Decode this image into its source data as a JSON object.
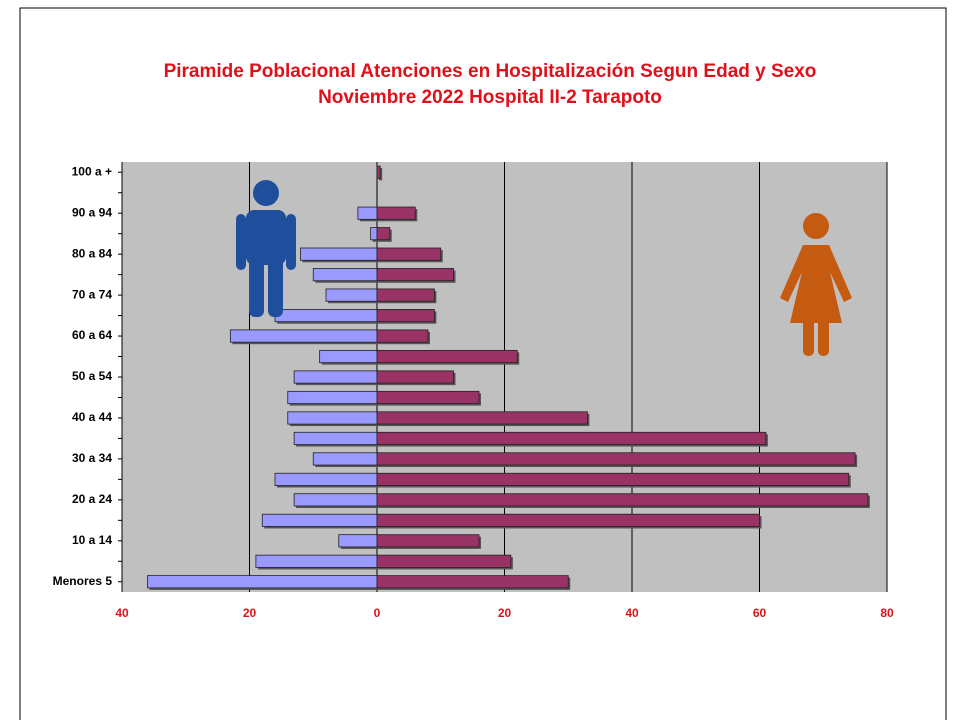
{
  "chart_data": {
    "type": "pyramid",
    "title": "Piramide Poblacional  Atenciones en Hospitalización Segun Edad y Sexo",
    "subtitle": "Noviembre 2022  Hospital II-2 Tarapoto",
    "categories": [
      "Menores 5",
      null,
      "10 a 14",
      null,
      "20 a 24",
      null,
      "30 a 34",
      null,
      "40 a 44",
      null,
      "50 a 54",
      null,
      "60 a 64",
      null,
      "70 a 74",
      null,
      "80 a 84",
      null,
      "90 a 94",
      null,
      "100 a +"
    ],
    "series": [
      {
        "color": "#9999ff",
        "values": [
          -36,
          -19,
          -6,
          -18,
          -13,
          -16,
          -10,
          -13,
          -14,
          -14,
          -13,
          -9,
          -23,
          -16,
          -8,
          -10,
          -12,
          -1,
          -3,
          0,
          0
        ]
      },
      {
        "color": "#993366",
        "values": [
          30,
          21,
          16,
          60,
          77,
          74,
          75,
          61,
          33,
          16,
          12,
          22,
          8,
          9,
          9,
          12,
          10,
          2,
          6,
          0,
          0.5
        ]
      }
    ],
    "xlim": [
      -40,
      80
    ],
    "xticks": [
      {
        "value": -40,
        "label": "40"
      },
      {
        "value": -20,
        "label": "20"
      },
      0,
      20,
      40,
      60,
      80
    ],
    "grid": true
  }
}
